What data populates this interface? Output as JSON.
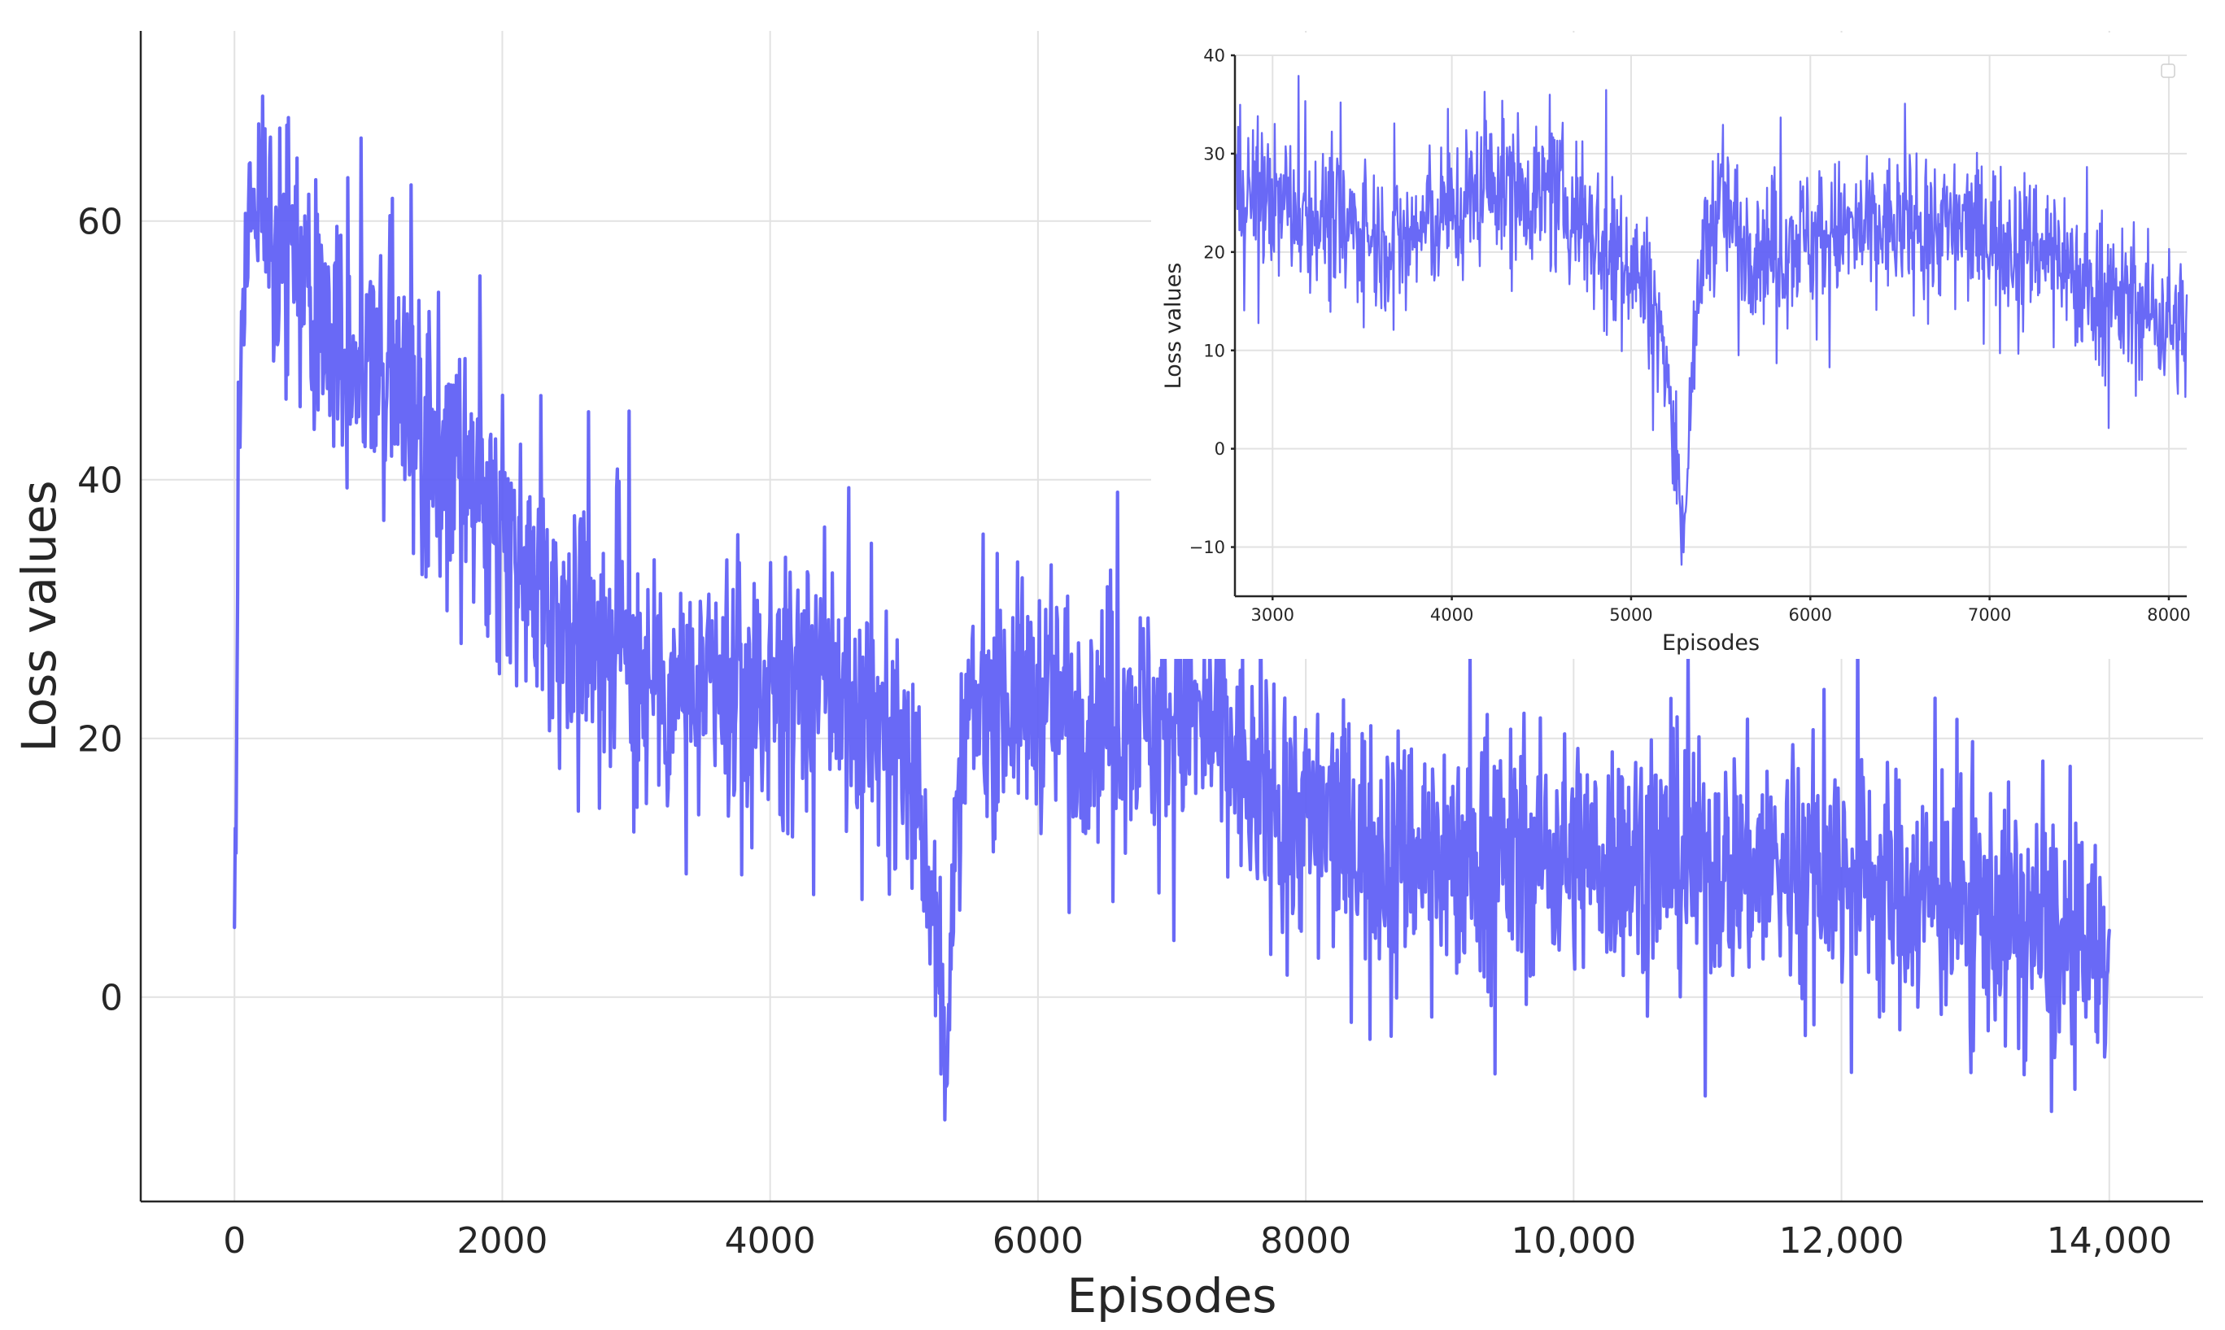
{
  "chart_data": [
    {
      "type": "line",
      "role": "main",
      "title": "",
      "xlabel": "Episodes",
      "ylabel": "Loss values",
      "xlim": [
        -700,
        14700
      ],
      "ylim": [
        -15.8,
        74.7
      ],
      "xticks": [
        0,
        2000,
        4000,
        6000,
        8000,
        10000,
        12000,
        14000
      ],
      "xtick_labels": [
        "0",
        "2000",
        "4000",
        "6000",
        "8000",
        "10,000",
        "12,000",
        "14,000"
      ],
      "yticks": [
        0,
        20,
        40,
        60
      ],
      "ytick_labels": [
        "0",
        "20",
        "40",
        "60"
      ],
      "grid": true,
      "color": "#5c5cf5",
      "series": [
        {
          "x": [
            0,
            30,
            60,
            100,
            150,
            200,
            250,
            300,
            400,
            500,
            700,
            1000,
            1300,
            1600,
            2000,
            2500,
            3000,
            3500,
            4000,
            4500,
            4800,
            5000,
            5100,
            5200,
            5260,
            5300,
            5350,
            5450,
            5600,
            6000,
            6500,
            7000,
            7400,
            7600,
            8000,
            8500,
            9000,
            9500,
            10000,
            10500,
            11000,
            11500,
            12000,
            12500,
            13000,
            13500,
            13800,
            14000
          ],
          "y": [
            2,
            45,
            55,
            59,
            61,
            62,
            61,
            59,
            57,
            55,
            52,
            49,
            45,
            41,
            35,
            30,
            26,
            23,
            24,
            24,
            21,
            19,
            15,
            9,
            0,
            -5,
            5,
            20,
            23,
            23,
            22,
            22,
            20,
            16,
            14,
            12,
            11,
            11,
            11,
            11,
            10,
            10,
            10,
            8,
            7,
            5,
            3,
            3
          ]
        }
      ]
    },
    {
      "type": "line",
      "role": "inset",
      "title": "",
      "xlabel": "Episodes",
      "ylabel": "Loss values",
      "xlim": [
        2790,
        8100
      ],
      "ylim": [
        -15,
        40
      ],
      "xticks": [
        3000,
        4000,
        5000,
        6000,
        7000,
        8000
      ],
      "xtick_labels": [
        "3000",
        "4000",
        "5000",
        "6000",
        "7000",
        "8000"
      ],
      "yticks": [
        -10,
        0,
        10,
        20,
        30,
        40
      ],
      "ytick_labels": [
        "−10",
        "0",
        "10",
        "20",
        "30",
        "40"
      ],
      "grid": true,
      "color": "#5c5cf5",
      "series": [
        {
          "x": [
            2800,
            3000,
            3200,
            3500,
            3700,
            4000,
            4200,
            4500,
            4700,
            4800,
            4900,
            5000,
            5100,
            5150,
            5200,
            5250,
            5280,
            5300,
            5330,
            5400,
            5450,
            5500,
            5600,
            5800,
            6000,
            6300,
            6600,
            7000,
            7200,
            7400,
            7500,
            7700,
            7900,
            8100
          ],
          "y": [
            27,
            25,
            24,
            22,
            21,
            24,
            27,
            26,
            24,
            22,
            20,
            19,
            16,
            13,
            8,
            0,
            -8,
            -7,
            5,
            20,
            23,
            25,
            22,
            20,
            22,
            22,
            23,
            22,
            21,
            20,
            17,
            15,
            14,
            12
          ]
        }
      ]
    }
  ]
}
